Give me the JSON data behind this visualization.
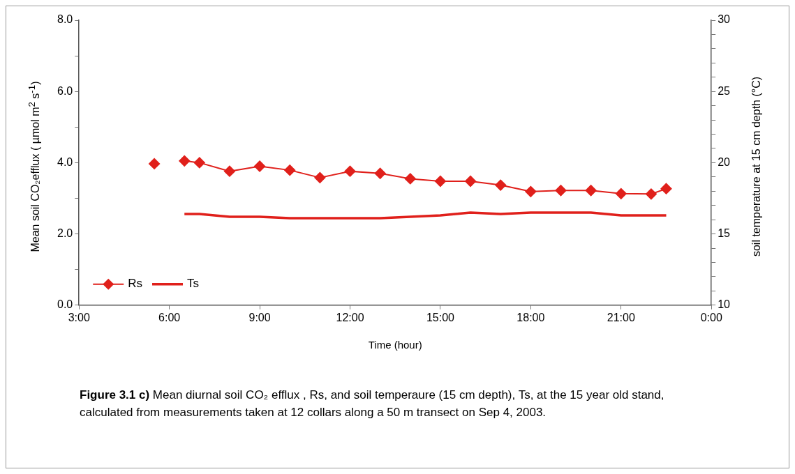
{
  "chart_data": {
    "type": "line",
    "xlabel": "Time (hour)",
    "ylabel": "Mean soil CO₂efflux ( µmol m$^{2}$ s$^{-1}$)",
    "y2label": "soil temperature at 15 cm depth (°C)",
    "annotations": [
      "Figure 3.1 c)",
      "Mean diurnal soil CO₂ efflux , Rs, and soil temperaure (15 cm depth), Ts, at the 15 year old stand, calculated from measurements taken at 12 collars along a 50 m transect on Sep 4, 2003."
    ],
    "xlim": [
      3,
      24
    ],
    "xticks": [
      {
        "value": 3,
        "label": "3:00"
      },
      {
        "value": 6,
        "label": "6:00"
      },
      {
        "value": 9,
        "label": "9:00"
      },
      {
        "value": 12,
        "label": "12:00"
      },
      {
        "value": 15,
        "label": "15:00"
      },
      {
        "value": 18,
        "label": "18:00"
      },
      {
        "value": 21,
        "label": "21:00"
      },
      {
        "value": 24,
        "label": "0:00"
      }
    ],
    "ylim": [
      0,
      8
    ],
    "yticks": [
      {
        "value": 0,
        "label": "0.0"
      },
      {
        "value": 1,
        "label": null
      },
      {
        "value": 2,
        "label": "2.0"
      },
      {
        "value": 3,
        "label": null
      },
      {
        "value": 4,
        "label": "4.0"
      },
      {
        "value": 5,
        "label": null
      },
      {
        "value": 6,
        "label": "6.0"
      },
      {
        "value": 7,
        "label": null
      },
      {
        "value": 8,
        "label": "8.0"
      }
    ],
    "y2lim": [
      10,
      30
    ],
    "y2ticks": [
      10,
      {
        "value": 11,
        "label": null
      },
      {
        "value": 12,
        "label": null
      },
      {
        "value": 13,
        "label": null
      },
      {
        "value": 14,
        "label": null
      },
      15,
      {
        "value": 16,
        "label": null
      },
      {
        "value": 17,
        "label": null
      },
      {
        "value": 18,
        "label": null
      },
      {
        "value": 19,
        "label": null
      },
      20,
      {
        "value": 21,
        "label": null
      },
      {
        "value": 22,
        "label": null
      },
      {
        "value": 23,
        "label": null
      },
      {
        "value": 24,
        "label": null
      },
      25,
      {
        "value": 26,
        "label": null
      },
      {
        "value": 27,
        "label": null
      },
      {
        "value": 28,
        "label": null
      },
      {
        "value": 29,
        "label": null
      },
      30
    ],
    "grid": false,
    "legend": "bottom left",
    "series": [
      {
        "name": "Rs",
        "color": "#e0201b",
        "marker": "diamond",
        "x": [
          5.5,
          6,
          6.5,
          7,
          8,
          9,
          10,
          11,
          12,
          13,
          14,
          15,
          16,
          17,
          18,
          19,
          20,
          21,
          22,
          22.5
        ],
        "values": [
          3.97,
          null,
          4.05,
          4.0,
          3.76,
          3.9,
          3.79,
          3.58,
          3.76,
          3.7,
          3.55,
          3.48,
          3.48,
          3.37,
          3.19,
          3.22,
          3.22,
          3.13,
          3.12,
          3.27
        ]
      },
      {
        "name": "Ts",
        "color": "#e0201b",
        "marker": "none",
        "axis": "y2",
        "x": [
          6.5,
          7,
          8,
          9,
          10,
          11,
          12,
          13,
          14,
          15,
          16,
          17,
          18,
          19,
          20,
          21,
          22,
          22.5
        ],
        "values": [
          16.4,
          16.4,
          16.2,
          16.2,
          16.1,
          16.1,
          16.1,
          16.1,
          16.2,
          16.3,
          16.5,
          16.4,
          16.5,
          16.5,
          16.5,
          16.3,
          16.3,
          16.3
        ]
      }
    ]
  }
}
